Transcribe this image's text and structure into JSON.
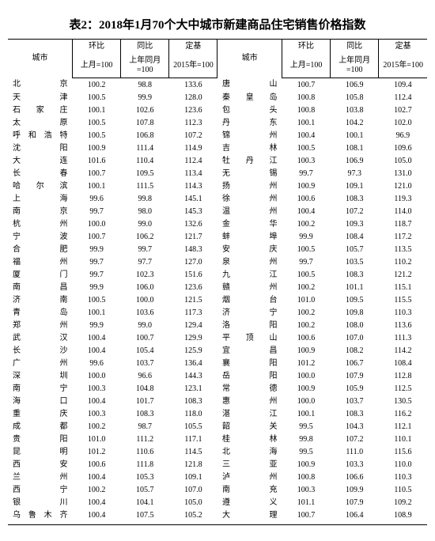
{
  "title": "表2：2018年1月70个大中城市新建商品住宅销售价格指数",
  "headers": {
    "city": "城市",
    "mom": "环比",
    "yoy": "同比",
    "base": "定基",
    "mom_sub": "上月=100",
    "yoy_sub": "上年同月=100",
    "base_sub": "2015年=100"
  },
  "rows": [
    {
      "c1": "北京",
      "m1": "100.2",
      "y1": "98.8",
      "b1": "133.6",
      "c2": "唐山",
      "m2": "100.7",
      "y2": "106.9",
      "b2": "109.4"
    },
    {
      "c1": "天津",
      "m1": "100.5",
      "y1": "99.9",
      "b1": "128.0",
      "c2": "秦皇岛",
      "m2": "100.8",
      "y2": "105.8",
      "b2": "112.4"
    },
    {
      "c1": "石家庄",
      "m1": "100.1",
      "y1": "102.6",
      "b1": "123.6",
      "c2": "包头",
      "m2": "100.8",
      "y2": "103.8",
      "b2": "102.7"
    },
    {
      "c1": "太原",
      "m1": "100.5",
      "y1": "107.8",
      "b1": "112.3",
      "c2": "丹东",
      "m2": "100.1",
      "y2": "104.2",
      "b2": "102.0"
    },
    {
      "c1": "呼和浩特",
      "m1": "100.5",
      "y1": "106.8",
      "b1": "107.2",
      "c2": "锦州",
      "m2": "100.4",
      "y2": "100.1",
      "b2": "96.9"
    },
    {
      "c1": "沈阳",
      "m1": "100.9",
      "y1": "111.4",
      "b1": "114.9",
      "c2": "吉林",
      "m2": "100.5",
      "y2": "108.1",
      "b2": "109.6"
    },
    {
      "c1": "大连",
      "m1": "101.6",
      "y1": "110.4",
      "b1": "112.4",
      "c2": "牡丹江",
      "m2": "100.3",
      "y2": "106.9",
      "b2": "105.0"
    },
    {
      "c1": "长春",
      "m1": "100.7",
      "y1": "109.5",
      "b1": "113.4",
      "c2": "无锡",
      "m2": "99.7",
      "y2": "97.3",
      "b2": "131.0"
    },
    {
      "c1": "哈尔滨",
      "m1": "100.1",
      "y1": "111.5",
      "b1": "114.3",
      "c2": "扬州",
      "m2": "100.9",
      "y2": "109.1",
      "b2": "121.0"
    },
    {
      "c1": "上海",
      "m1": "99.6",
      "y1": "99.8",
      "b1": "145.1",
      "c2": "徐州",
      "m2": "100.6",
      "y2": "108.3",
      "b2": "119.3"
    },
    {
      "c1": "南京",
      "m1": "99.7",
      "y1": "98.0",
      "b1": "145.3",
      "c2": "温州",
      "m2": "100.4",
      "y2": "107.2",
      "b2": "114.0"
    },
    {
      "c1": "杭州",
      "m1": "100.0",
      "y1": "99.0",
      "b1": "132.6",
      "c2": "金华",
      "m2": "100.2",
      "y2": "109.3",
      "b2": "118.7"
    },
    {
      "c1": "宁波",
      "m1": "100.7",
      "y1": "106.2",
      "b1": "121.7",
      "c2": "蚌埠",
      "m2": "99.9",
      "y2": "108.4",
      "b2": "117.2"
    },
    {
      "c1": "合肥",
      "m1": "99.9",
      "y1": "99.7",
      "b1": "148.3",
      "c2": "安庆",
      "m2": "100.5",
      "y2": "105.7",
      "b2": "113.5"
    },
    {
      "c1": "福州",
      "m1": "99.7",
      "y1": "97.7",
      "b1": "127.0",
      "c2": "泉州",
      "m2": "99.7",
      "y2": "103.5",
      "b2": "110.2"
    },
    {
      "c1": "厦门",
      "m1": "99.7",
      "y1": "102.3",
      "b1": "151.6",
      "c2": "九江",
      "m2": "100.5",
      "y2": "108.3",
      "b2": "121.2"
    },
    {
      "c1": "南昌",
      "m1": "99.9",
      "y1": "106.0",
      "b1": "123.6",
      "c2": "赣州",
      "m2": "100.2",
      "y2": "101.1",
      "b2": "115.1"
    },
    {
      "c1": "济南",
      "m1": "100.5",
      "y1": "100.0",
      "b1": "121.5",
      "c2": "烟台",
      "m2": "101.0",
      "y2": "109.5",
      "b2": "115.5"
    },
    {
      "c1": "青岛",
      "m1": "100.1",
      "y1": "103.6",
      "b1": "117.3",
      "c2": "济宁",
      "m2": "100.2",
      "y2": "109.8",
      "b2": "110.3"
    },
    {
      "c1": "郑州",
      "m1": "99.9",
      "y1": "99.0",
      "b1": "129.4",
      "c2": "洛阳",
      "m2": "100.2",
      "y2": "108.0",
      "b2": "113.6"
    },
    {
      "c1": "武汉",
      "m1": "100.4",
      "y1": "100.7",
      "b1": "129.9",
      "c2": "平顶山",
      "m2": "100.6",
      "y2": "107.0",
      "b2": "111.3"
    },
    {
      "c1": "长沙",
      "m1": "100.4",
      "y1": "105.4",
      "b1": "125.9",
      "c2": "宜昌",
      "m2": "100.9",
      "y2": "108.2",
      "b2": "114.2"
    },
    {
      "c1": "广州",
      "m1": "99.6",
      "y1": "103.7",
      "b1": "136.4",
      "c2": "襄阳",
      "m2": "101.2",
      "y2": "106.7",
      "b2": "108.4"
    },
    {
      "c1": "深圳",
      "m1": "100.0",
      "y1": "96.6",
      "b1": "144.3",
      "c2": "岳阳",
      "m2": "100.0",
      "y2": "107.9",
      "b2": "112.8"
    },
    {
      "c1": "南宁",
      "m1": "100.3",
      "y1": "104.8",
      "b1": "123.1",
      "c2": "常德",
      "m2": "100.9",
      "y2": "105.9",
      "b2": "112.5"
    },
    {
      "c1": "海口",
      "m1": "100.4",
      "y1": "101.7",
      "b1": "108.3",
      "c2": "惠州",
      "m2": "100.0",
      "y2": "103.7",
      "b2": "130.5"
    },
    {
      "c1": "重庆",
      "m1": "100.3",
      "y1": "108.3",
      "b1": "118.0",
      "c2": "湛江",
      "m2": "100.1",
      "y2": "108.3",
      "b2": "116.2"
    },
    {
      "c1": "成都",
      "m1": "100.2",
      "y1": "98.7",
      "b1": "105.5",
      "c2": "韶关",
      "m2": "99.5",
      "y2": "104.3",
      "b2": "112.1"
    },
    {
      "c1": "贵阳",
      "m1": "101.0",
      "y1": "111.2",
      "b1": "117.1",
      "c2": "桂林",
      "m2": "99.8",
      "y2": "107.2",
      "b2": "110.1"
    },
    {
      "c1": "昆明",
      "m1": "101.2",
      "y1": "110.6",
      "b1": "114.5",
      "c2": "北海",
      "m2": "99.5",
      "y2": "111.0",
      "b2": "115.6"
    },
    {
      "c1": "西安",
      "m1": "100.6",
      "y1": "111.8",
      "b1": "121.8",
      "c2": "三亚",
      "m2": "100.9",
      "y2": "103.3",
      "b2": "110.0"
    },
    {
      "c1": "兰州",
      "m1": "100.4",
      "y1": "105.3",
      "b1": "109.1",
      "c2": "泸州",
      "m2": "100.8",
      "y2": "106.6",
      "b2": "110.3"
    },
    {
      "c1": "西宁",
      "m1": "100.2",
      "y1": "105.7",
      "b1": "107.0",
      "c2": "南充",
      "m2": "100.3",
      "y2": "109.9",
      "b2": "110.5"
    },
    {
      "c1": "银川",
      "m1": "100.4",
      "y1": "104.1",
      "b1": "105.0",
      "c2": "遵义",
      "m2": "101.1",
      "y2": "107.9",
      "b2": "109.2"
    },
    {
      "c1": "乌鲁木齐",
      "m1": "100.4",
      "y1": "107.5",
      "b1": "105.2",
      "c2": "大理",
      "m2": "100.7",
      "y2": "106.4",
      "b2": "108.9"
    }
  ]
}
